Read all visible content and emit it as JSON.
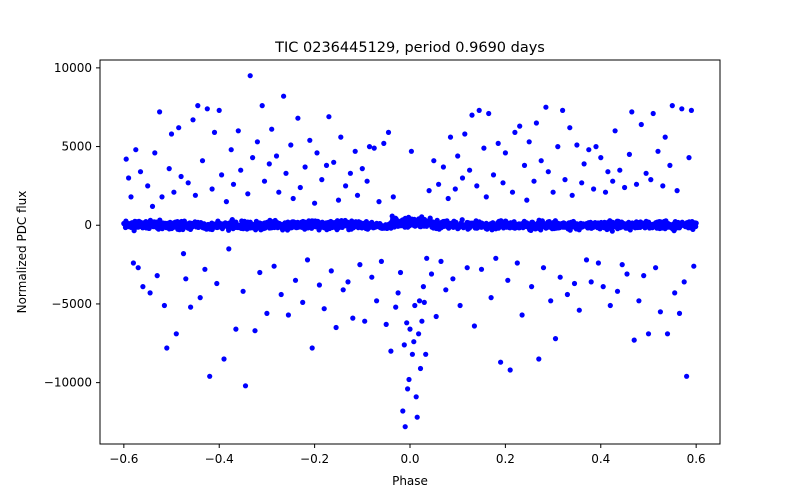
{
  "chart_data": {
    "type": "scatter",
    "title": "TIC 0236445129, period 0.9690 days",
    "xlabel": "Phase",
    "ylabel": "Normalized PDC flux",
    "xlim": [
      -0.65,
      0.65
    ],
    "ylim": [
      -13900,
      10500
    ],
    "xticks": [
      -0.6,
      -0.4,
      -0.2,
      0.0,
      0.2,
      0.4,
      0.6
    ],
    "xtick_labels": [
      "−0.6",
      "−0.4",
      "−0.2",
      "0.0",
      "0.2",
      "0.4",
      "0.6"
    ],
    "yticks": [
      10000,
      5000,
      0,
      -5000,
      -10000
    ],
    "ytick_labels": [
      "10000",
      "5000",
      "0",
      "−5000",
      "−10000"
    ],
    "grid": false,
    "marker_color": "#0000ff",
    "series": [
      {
        "name": "PDC flux",
        "points": [
          [
            -0.595,
            4200
          ],
          [
            -0.59,
            3000
          ],
          [
            -0.585,
            1800
          ],
          [
            -0.58,
            -2400
          ],
          [
            -0.575,
            4800
          ],
          [
            -0.57,
            -2700
          ],
          [
            -0.565,
            3400
          ],
          [
            -0.56,
            -3900
          ],
          [
            -0.55,
            2500
          ],
          [
            -0.545,
            -4300
          ],
          [
            -0.54,
            1200
          ],
          [
            -0.535,
            4600
          ],
          [
            -0.53,
            -3200
          ],
          [
            -0.525,
            7200
          ],
          [
            -0.52,
            1800
          ],
          [
            -0.515,
            -5100
          ],
          [
            -0.51,
            -7800
          ],
          [
            -0.505,
            3600
          ],
          [
            -0.5,
            5800
          ],
          [
            -0.495,
            2100
          ],
          [
            -0.49,
            -6900
          ],
          [
            -0.485,
            6200
          ],
          [
            -0.48,
            3100
          ],
          [
            -0.475,
            -1800
          ],
          [
            -0.47,
            -3400
          ],
          [
            -0.465,
            2700
          ],
          [
            -0.46,
            -5200
          ],
          [
            -0.455,
            6700
          ],
          [
            -0.45,
            1900
          ],
          [
            -0.445,
            7600
          ],
          [
            -0.44,
            -4600
          ],
          [
            -0.435,
            4100
          ],
          [
            -0.43,
            -2800
          ],
          [
            -0.425,
            7400
          ],
          [
            -0.42,
            -9600
          ],
          [
            -0.415,
            2300
          ],
          [
            -0.41,
            5900
          ],
          [
            -0.405,
            -3700
          ],
          [
            -0.4,
            7300
          ],
          [
            -0.395,
            3200
          ],
          [
            -0.39,
            -8500
          ],
          [
            -0.385,
            1500
          ],
          [
            -0.38,
            -1500
          ],
          [
            -0.375,
            4800
          ],
          [
            -0.37,
            2600
          ],
          [
            -0.365,
            -6600
          ],
          [
            -0.36,
            6000
          ],
          [
            -0.355,
            3500
          ],
          [
            -0.35,
            -4200
          ],
          [
            -0.345,
            -10200
          ],
          [
            -0.34,
            2000
          ],
          [
            -0.335,
            9500
          ],
          [
            -0.33,
            4300
          ],
          [
            -0.325,
            -6700
          ],
          [
            -0.32,
            5300
          ],
          [
            -0.315,
            -3000
          ],
          [
            -0.31,
            7600
          ],
          [
            -0.305,
            2800
          ],
          [
            -0.3,
            -5600
          ],
          [
            -0.295,
            3900
          ],
          [
            -0.29,
            6100
          ],
          [
            -0.285,
            -2600
          ],
          [
            -0.28,
            4400
          ],
          [
            -0.275,
            2100
          ],
          [
            -0.27,
            -4400
          ],
          [
            -0.265,
            8200
          ],
          [
            -0.26,
            3300
          ],
          [
            -0.255,
            -5700
          ],
          [
            -0.25,
            5100
          ],
          [
            -0.245,
            1700
          ],
          [
            -0.24,
            -3500
          ],
          [
            -0.235,
            6800
          ],
          [
            -0.23,
            2400
          ],
          [
            -0.225,
            -4900
          ],
          [
            -0.22,
            3700
          ],
          [
            -0.215,
            -2200
          ],
          [
            -0.21,
            5400
          ],
          [
            -0.205,
            -7800
          ],
          [
            -0.2,
            1400
          ],
          [
            -0.195,
            4600
          ],
          [
            -0.19,
            -3800
          ],
          [
            -0.185,
            2900
          ],
          [
            -0.18,
            -5300
          ],
          [
            -0.175,
            3800
          ],
          [
            -0.17,
            6900
          ],
          [
            -0.165,
            -2900
          ],
          [
            -0.16,
            4000
          ],
          [
            -0.155,
            -6500
          ],
          [
            -0.15,
            1600
          ],
          [
            -0.145,
            5600
          ],
          [
            -0.14,
            -4100
          ],
          [
            -0.135,
            2500
          ],
          [
            -0.13,
            -3600
          ],
          [
            -0.125,
            3300
          ],
          [
            -0.12,
            -5900
          ],
          [
            -0.115,
            4700
          ],
          [
            -0.11,
            1900
          ],
          [
            -0.105,
            -2500
          ],
          [
            -0.1,
            3600
          ],
          [
            -0.095,
            -6100
          ],
          [
            -0.09,
            2800
          ],
          [
            -0.085,
            5000
          ],
          [
            -0.08,
            -3300
          ],
          [
            -0.075,
            4900
          ],
          [
            -0.07,
            -4800
          ],
          [
            -0.065,
            1500
          ],
          [
            -0.06,
            -2300
          ],
          [
            -0.055,
            5200
          ],
          [
            -0.05,
            -6300
          ],
          [
            -0.045,
            5900
          ],
          [
            -0.04,
            -8000
          ],
          [
            -0.035,
            1800
          ],
          [
            -0.03,
            -5200
          ],
          [
            -0.025,
            -4300
          ],
          [
            -0.02,
            -3000
          ],
          [
            -0.015,
            -11800
          ],
          [
            -0.012,
            -7600
          ],
          [
            -0.01,
            -12800
          ],
          [
            -0.007,
            -6200
          ],
          [
            -0.005,
            -10400
          ],
          [
            -0.002,
            -9800
          ],
          [
            0.0,
            -6600
          ],
          [
            0.003,
            4700
          ],
          [
            0.005,
            -8200
          ],
          [
            0.008,
            -7400
          ],
          [
            0.01,
            -5100
          ],
          [
            0.013,
            -10900
          ],
          [
            0.015,
            -12200
          ],
          [
            0.018,
            -6900
          ],
          [
            0.02,
            -4800
          ],
          [
            0.022,
            -9100
          ],
          [
            0.025,
            -6100
          ],
          [
            0.028,
            -3900
          ],
          [
            0.03,
            -4900
          ],
          [
            0.033,
            -8200
          ],
          [
            0.035,
            -2100
          ],
          [
            0.04,
            2200
          ],
          [
            0.045,
            -3100
          ],
          [
            0.05,
            4100
          ],
          [
            0.055,
            -5800
          ],
          [
            0.06,
            2600
          ],
          [
            0.065,
            -2300
          ],
          [
            0.07,
            3700
          ],
          [
            0.075,
            -4100
          ],
          [
            0.08,
            1700
          ],
          [
            0.085,
            5600
          ],
          [
            0.09,
            -3400
          ],
          [
            0.095,
            2300
          ],
          [
            0.1,
            4400
          ],
          [
            0.105,
            -5100
          ],
          [
            0.11,
            3000
          ],
          [
            0.115,
            5800
          ],
          [
            0.12,
            -2700
          ],
          [
            0.125,
            3500
          ],
          [
            0.13,
            7000
          ],
          [
            0.135,
            -6400
          ],
          [
            0.14,
            2500
          ],
          [
            0.145,
            7300
          ],
          [
            0.15,
            -2800
          ],
          [
            0.155,
            4900
          ],
          [
            0.16,
            1800
          ],
          [
            0.165,
            7100
          ],
          [
            0.17,
            -4600
          ],
          [
            0.175,
            3200
          ],
          [
            0.18,
            -2100
          ],
          [
            0.185,
            5200
          ],
          [
            0.19,
            -8700
          ],
          [
            0.195,
            2700
          ],
          [
            0.2,
            4600
          ],
          [
            0.205,
            -3500
          ],
          [
            0.21,
            -9200
          ],
          [
            0.215,
            2100
          ],
          [
            0.22,
            5900
          ],
          [
            0.225,
            -2400
          ],
          [
            0.23,
            6300
          ],
          [
            0.235,
            -5700
          ],
          [
            0.24,
            3800
          ],
          [
            0.245,
            1600
          ],
          [
            0.25,
            5300
          ],
          [
            0.255,
            -3900
          ],
          [
            0.26,
            2800
          ],
          [
            0.265,
            6500
          ],
          [
            0.27,
            -8500
          ],
          [
            0.275,
            4100
          ],
          [
            0.28,
            -2700
          ],
          [
            0.285,
            7500
          ],
          [
            0.29,
            3400
          ],
          [
            0.295,
            -4800
          ],
          [
            0.3,
            2100
          ],
          [
            0.305,
            -7200
          ],
          [
            0.31,
            5000
          ],
          [
            0.315,
            -3300
          ],
          [
            0.32,
            7300
          ],
          [
            0.325,
            2900
          ],
          [
            0.33,
            -4400
          ],
          [
            0.335,
            6200
          ],
          [
            0.34,
            1900
          ],
          [
            0.345,
            -3700
          ],
          [
            0.35,
            5100
          ],
          [
            0.355,
            -5400
          ],
          [
            0.36,
            2700
          ],
          [
            0.365,
            3900
          ],
          [
            0.37,
            -2200
          ],
          [
            0.375,
            4800
          ],
          [
            0.38,
            -3600
          ],
          [
            0.385,
            2300
          ],
          [
            0.39,
            5000
          ],
          [
            0.395,
            -2400
          ],
          [
            0.4,
            4300
          ],
          [
            0.405,
            -3900
          ],
          [
            0.41,
            2100
          ],
          [
            0.415,
            3400
          ],
          [
            0.42,
            -5100
          ],
          [
            0.425,
            2800
          ],
          [
            0.43,
            6000
          ],
          [
            0.435,
            -4200
          ],
          [
            0.44,
            3500
          ],
          [
            0.445,
            -2500
          ],
          [
            0.45,
            2400
          ],
          [
            0.455,
            -3100
          ],
          [
            0.46,
            4500
          ],
          [
            0.465,
            7200
          ],
          [
            0.47,
            -7300
          ],
          [
            0.475,
            2600
          ],
          [
            0.48,
            -4800
          ],
          [
            0.485,
            6400
          ],
          [
            0.49,
            -3200
          ],
          [
            0.495,
            3300
          ],
          [
            0.5,
            -6900
          ],
          [
            0.505,
            2900
          ],
          [
            0.51,
            7100
          ],
          [
            0.515,
            -2700
          ],
          [
            0.52,
            4700
          ],
          [
            0.525,
            -5500
          ],
          [
            0.53,
            2500
          ],
          [
            0.535,
            5600
          ],
          [
            0.54,
            -6900
          ],
          [
            0.545,
            3800
          ],
          [
            0.55,
            7600
          ],
          [
            0.555,
            -4300
          ],
          [
            0.56,
            2200
          ],
          [
            0.565,
            -5600
          ],
          [
            0.57,
            7400
          ],
          [
            0.575,
            -3600
          ],
          [
            0.58,
            -9600
          ],
          [
            0.585,
            4300
          ],
          [
            0.59,
            7300
          ],
          [
            0.595,
            -2600
          ]
        ]
      }
    ]
  }
}
